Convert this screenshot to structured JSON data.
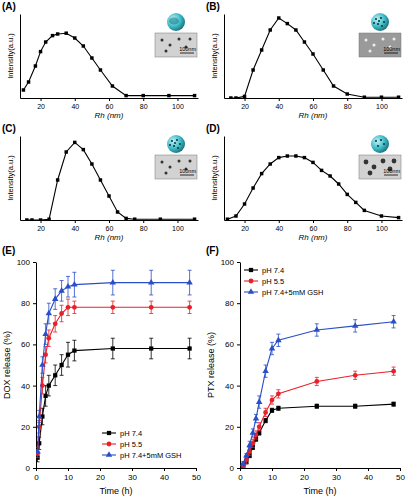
{
  "chart_data": [
    {
      "type": "line",
      "title": "(A)",
      "x_label": "Rh (nm)",
      "y_label": "Intensity(a.u.)",
      "annotation": "100nm",
      "xlim": [
        8,
        112
      ],
      "xticks": [
        20,
        40,
        60,
        80,
        100
      ],
      "ylim": [
        0,
        105
      ],
      "tick_labels": "x",
      "x": [
        10,
        13,
        17,
        20,
        23,
        27,
        30,
        35,
        40,
        45,
        50,
        55,
        62,
        70,
        80,
        95,
        110
      ],
      "series": [
        {
          "color": "#000000",
          "marker": "square",
          "values": [
            10,
            20,
            40,
            58,
            70,
            78,
            80,
            81,
            75,
            65,
            50,
            35,
            15,
            3,
            3,
            3,
            3
          ]
        }
      ]
    },
    {
      "type": "line",
      "title": "(B)",
      "x_label": "Rh (nm)",
      "y_label": "Intensity(a.u.)",
      "annotation": "100nm",
      "xlim": [
        8,
        112
      ],
      "xticks": [
        20,
        40,
        60,
        80,
        100
      ],
      "ylim": [
        0,
        105
      ],
      "tick_labels": "x",
      "x": [
        12,
        15,
        20,
        25,
        30,
        35,
        40,
        45,
        50,
        55,
        60,
        66,
        72,
        80,
        90,
        100,
        110
      ],
      "series": [
        {
          "color": "#000000",
          "marker": "square",
          "values": [
            0,
            0,
            2,
            35,
            60,
            85,
            100,
            93,
            85,
            70,
            55,
            35,
            15,
            5,
            1,
            1,
            1
          ]
        }
      ]
    },
    {
      "type": "line",
      "title": "(C)",
      "x_label": "Rh (nm)",
      "y_label": "Intensity(a.u.)",
      "annotation": "100nm",
      "xlim": [
        8,
        112
      ],
      "xticks": [
        20,
        40,
        60,
        80,
        100
      ],
      "ylim": [
        0,
        105
      ],
      "tick_labels": "x",
      "x": [
        12,
        15,
        20,
        25,
        30,
        35,
        40,
        45,
        50,
        55,
        60,
        65,
        70,
        75,
        90,
        110
      ],
      "series": [
        {
          "color": "#000000",
          "marker": "square",
          "values": [
            0,
            0,
            0,
            1,
            50,
            85,
            97,
            88,
            70,
            50,
            30,
            10,
            2,
            1,
            1,
            1
          ]
        }
      ]
    },
    {
      "type": "line",
      "title": "(D)",
      "x_label": "Rh (nm)",
      "y_label": "Intensity(a.u.)",
      "annotation": "100nm",
      "xlim": [
        8,
        112
      ],
      "xticks": [
        20,
        40,
        60,
        80,
        100
      ],
      "ylim": [
        0,
        105
      ],
      "tick_labels": "x",
      "x": [
        10,
        15,
        20,
        25,
        30,
        35,
        40,
        45,
        50,
        55,
        60,
        65,
        70,
        75,
        80,
        85,
        90,
        100,
        110
      ],
      "series": [
        {
          "color": "#000000",
          "marker": "square",
          "values": [
            1,
            5,
            20,
            40,
            58,
            70,
            78,
            80,
            80,
            78,
            72,
            62,
            55,
            45,
            32,
            22,
            12,
            5,
            3
          ]
        }
      ]
    },
    {
      "type": "line",
      "title": "(E)",
      "x_label": "Time (h)",
      "y_label": "DOX release (%)",
      "legend": "lower right",
      "xlim": [
        0,
        50
      ],
      "xticks": [
        0,
        10,
        20,
        30,
        40,
        50
      ],
      "ylim": [
        0,
        100
      ],
      "yticks": [
        0,
        20,
        40,
        60,
        80,
        100
      ],
      "x": [
        0.5,
        1,
        2,
        3,
        4,
        6,
        8,
        10,
        12,
        24,
        36,
        48
      ],
      "series": [
        {
          "name": "pH 7.4",
          "color": "#000000",
          "marker": "square",
          "values": [
            5,
            12,
            25,
            35,
            40,
            45,
            50,
            55,
            57,
            58,
            58,
            58
          ],
          "errors": [
            2,
            3,
            4,
            5,
            5,
            5,
            5,
            6,
            5,
            5,
            5,
            5
          ]
        },
        {
          "name": "pH 5.5",
          "color": "#e8202a",
          "marker": "circle",
          "values": [
            7,
            20,
            40,
            55,
            63,
            70,
            75,
            78,
            78,
            78,
            78,
            78
          ],
          "errors": [
            2,
            3,
            4,
            4,
            4,
            4,
            4,
            4,
            3,
            3,
            3,
            3
          ]
        },
        {
          "name": "pH 7.4+5mM GSH",
          "color": "#2a4ec8",
          "marker": "triangle",
          "values": [
            8,
            25,
            50,
            65,
            75,
            82,
            86,
            88,
            89,
            90,
            90,
            90
          ],
          "errors": [
            2,
            3,
            4,
            5,
            5,
            5,
            5,
            5,
            6,
            6,
            6,
            6
          ]
        }
      ]
    },
    {
      "type": "line",
      "title": "(F)",
      "x_label": "Time (h)",
      "y_label": "PTX release (%)",
      "legend": "upper left",
      "xlim": [
        0,
        50
      ],
      "xticks": [
        0,
        10,
        20,
        30,
        40,
        50
      ],
      "ylim": [
        0,
        100
      ],
      "yticks": [
        0,
        20,
        40,
        60,
        80,
        100
      ],
      "x": [
        1,
        2,
        3,
        4,
        5,
        6,
        8,
        10,
        12,
        24,
        36,
        48
      ],
      "series": [
        {
          "name": "pH 7.4",
          "color": "#000000",
          "marker": "square",
          "values": [
            1,
            3,
            6,
            10,
            14,
            17,
            23,
            28,
            29,
            30,
            30,
            31
          ],
          "errors": [
            1,
            1,
            1,
            1,
            1,
            1,
            1,
            1,
            1,
            1,
            1,
            1
          ]
        },
        {
          "name": "pH 5.5",
          "color": "#e8202a",
          "marker": "circle",
          "values": [
            1,
            4,
            8,
            12,
            16,
            20,
            27,
            33,
            36,
            42,
            45,
            47
          ],
          "errors": [
            2,
            2,
            2,
            2,
            2,
            2,
            2,
            2,
            2,
            2,
            2,
            2
          ]
        },
        {
          "name": "pH 7.4+5mM GSH",
          "color": "#2a4ec8",
          "marker": "triangle",
          "values": [
            2,
            6,
            11,
            17,
            24,
            32,
            47,
            58,
            62,
            67,
            69,
            71
          ],
          "errors": [
            1,
            1,
            2,
            2,
            2,
            3,
            3,
            3,
            3,
            3,
            3,
            3
          ]
        }
      ]
    }
  ]
}
